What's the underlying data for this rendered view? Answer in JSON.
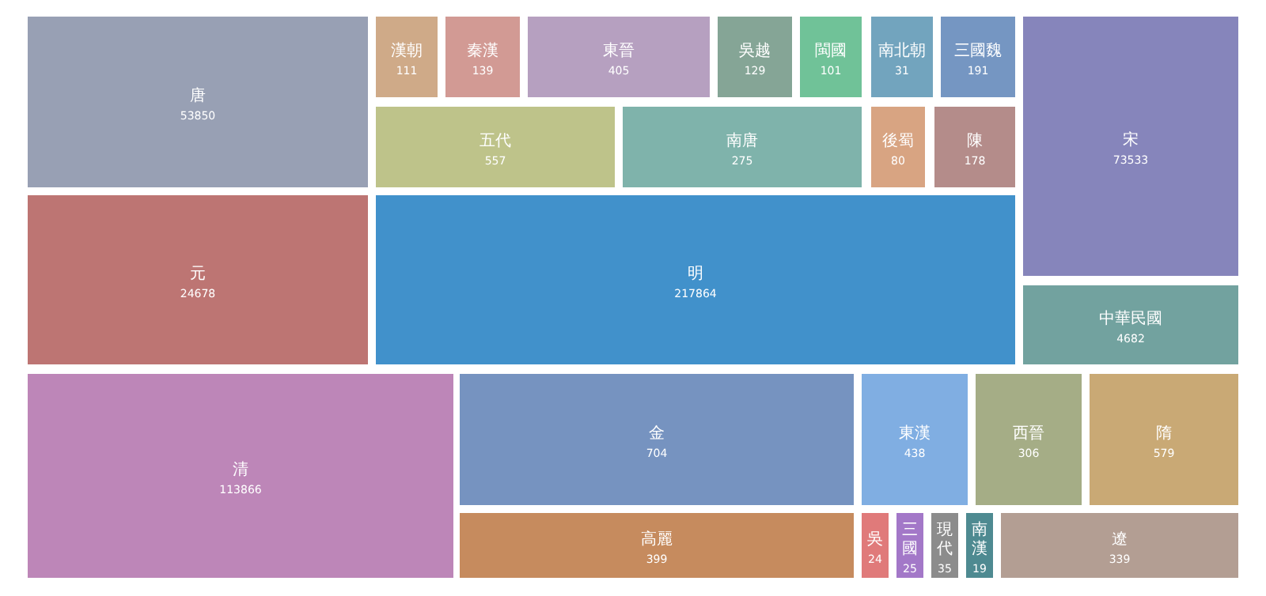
{
  "chart_data": {
    "type": "other",
    "categories": [
      "唐",
      "漢朝",
      "秦漢",
      "東晉",
      "吳越",
      "閩國",
      "南北朝",
      "三國魏",
      "五代",
      "南唐",
      "後蜀",
      "陳",
      "宋",
      "中華民國",
      "元",
      "明",
      "清",
      "金",
      "東漢",
      "西晉",
      "隋",
      "高麗",
      "吳",
      "三國",
      "現代",
      "南漢",
      "遼"
    ],
    "values": [
      53850,
      111,
      139,
      405,
      129,
      101,
      31,
      191,
      557,
      275,
      80,
      178,
      73533,
      4682,
      24678,
      217864,
      113866,
      704,
      438,
      306,
      579,
      399,
      24,
      25,
      35,
      19,
      339
    ],
    "colors": [
      "#98a0b4",
      "#cfaa88",
      "#d29a94",
      "#b6a0c0",
      "#85a596",
      "#70c298",
      "#72a4be",
      "#7596c2",
      "#bec38a",
      "#7fb3ab",
      "#d8a482",
      "#b48c8a",
      "#8685bb",
      "#72a29f",
      "#bd7573",
      "#4191cb",
      "#bd86b8",
      "#7693c0",
      "#80aee2",
      "#a5ad86",
      "#c9a975",
      "#c68b5e",
      "#e07a7a",
      "#a378c8",
      "#8c8c8c",
      "#4e8a91",
      "#b39e93"
    ],
    "data_labels": true
  }
}
